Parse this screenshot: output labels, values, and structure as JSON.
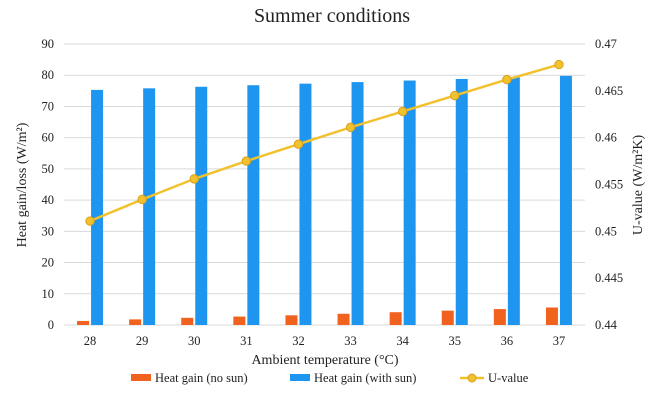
{
  "chart_data": {
    "type": "bar",
    "title": "Summer conditions",
    "xlabel": "Ambient temperature (°C)",
    "ylabel": "Heat gain/loss  (W/m²)",
    "y2label": "U-value  (W/m²K)",
    "categories": [
      "28",
      "29",
      "30",
      "31",
      "32",
      "33",
      "34",
      "35",
      "36",
      "37"
    ],
    "ylim": [
      0,
      90
    ],
    "yticks": [
      "0",
      "10",
      "20",
      "30",
      "40",
      "50",
      "60",
      "70",
      "80",
      "90"
    ],
    "y2lim": [
      0.44,
      0.47
    ],
    "y2ticks": [
      "0.44",
      "0.445",
      "0.45",
      "0.455",
      "0.46",
      "0.465",
      "0.47"
    ],
    "grid": true,
    "legend_position": "bottom",
    "series": [
      {
        "name": "Heat gain (no sun)",
        "type": "bar",
        "axis": "left",
        "color": "#f0621e",
        "values": [
          1.3,
          1.8,
          2.3,
          2.7,
          3.1,
          3.6,
          4.1,
          4.6,
          5.1,
          5.6
        ]
      },
      {
        "name": "Heat gain (with sun)",
        "type": "bar",
        "axis": "left",
        "color": "#1e96f0",
        "values": [
          75.3,
          75.8,
          76.3,
          76.8,
          77.3,
          77.8,
          78.3,
          78.8,
          79.3,
          79.8
        ]
      },
      {
        "name": "U-value",
        "type": "line",
        "axis": "right",
        "color": "#f2c12e",
        "values": [
          0.4511,
          0.4534,
          0.4556,
          0.4575,
          0.4593,
          0.4611,
          0.4628,
          0.4645,
          0.4662,
          0.4678
        ]
      }
    ]
  }
}
